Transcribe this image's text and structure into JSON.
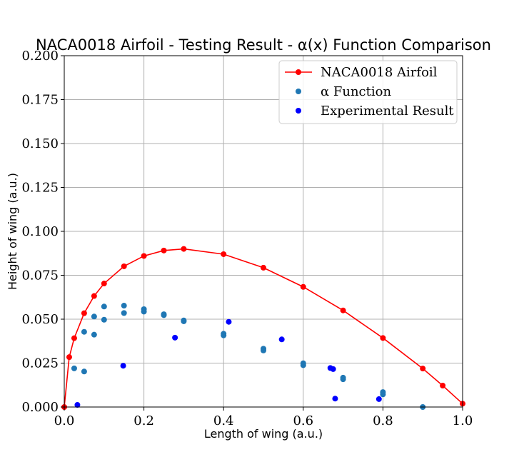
{
  "chart_data": {
    "type": "scatter",
    "title": "NACA0018 Airfoil - Testing Result - α(x) Function Comparison",
    "xlabel": "Length of wing (a.u.)",
    "ylabel": "Height of wing (a.u.)",
    "xlim": [
      0.0,
      1.0
    ],
    "ylim": [
      0.0,
      0.2
    ],
    "grid": true,
    "legend_position": "top-right",
    "x_ticks": [
      "0.0",
      "0.2",
      "0.4",
      "0.6",
      "0.8",
      "1.0"
    ],
    "x_tick_values": [
      0.0,
      0.2,
      0.4,
      0.6,
      0.8,
      1.0
    ],
    "y_ticks": [
      "0.000",
      "0.025",
      "0.050",
      "0.075",
      "0.100",
      "0.125",
      "0.150",
      "0.175",
      "0.200"
    ],
    "y_tick_values": [
      0.0,
      0.025,
      0.05,
      0.075,
      0.1,
      0.125,
      0.15,
      0.175,
      0.2
    ],
    "series": [
      {
        "name": "NACA0018 Airfoil",
        "kind": "line-marker",
        "color": "#ff0000",
        "points": [
          [
            0.0,
            0.0
          ],
          [
            0.0125,
            0.0284
          ],
          [
            0.025,
            0.0392
          ],
          [
            0.05,
            0.0534
          ],
          [
            0.075,
            0.0632
          ],
          [
            0.1,
            0.0703
          ],
          [
            0.15,
            0.0801
          ],
          [
            0.2,
            0.086
          ],
          [
            0.25,
            0.0891
          ],
          [
            0.3,
            0.09
          ],
          [
            0.4,
            0.087
          ],
          [
            0.5,
            0.0793
          ],
          [
            0.6,
            0.0684
          ],
          [
            0.7,
            0.055
          ],
          [
            0.8,
            0.0393
          ],
          [
            0.9,
            0.0219
          ],
          [
            0.95,
            0.0122
          ],
          [
            1.0,
            0.0019
          ]
        ]
      },
      {
        "name": "α Function",
        "kind": "scatter",
        "color": "#1f77b4",
        "points": [
          [
            0.025,
            0.022
          ],
          [
            0.05,
            0.0202
          ],
          [
            0.05,
            0.0428
          ],
          [
            0.075,
            0.0412
          ],
          [
            0.075,
            0.0515
          ],
          [
            0.1,
            0.0497
          ],
          [
            0.1,
            0.0572
          ],
          [
            0.15,
            0.0535
          ],
          [
            0.15,
            0.0577
          ],
          [
            0.2,
            0.0543
          ],
          [
            0.2,
            0.0557
          ],
          [
            0.25,
            0.0523
          ],
          [
            0.25,
            0.0528
          ],
          [
            0.3,
            0.0488
          ],
          [
            0.3,
            0.0493
          ],
          [
            0.4,
            0.0408
          ],
          [
            0.4,
            0.0417
          ],
          [
            0.5,
            0.0322
          ],
          [
            0.5,
            0.0332
          ],
          [
            0.6,
            0.0238
          ],
          [
            0.6,
            0.0249
          ],
          [
            0.7,
            0.0158
          ],
          [
            0.7,
            0.0167
          ],
          [
            0.8,
            0.0072
          ],
          [
            0.8,
            0.0085
          ],
          [
            0.9,
            0.0
          ]
        ]
      },
      {
        "name": "Experimental Result",
        "kind": "scatter",
        "color": "#0000ff",
        "points": [
          [
            0.033,
            0.0012
          ],
          [
            0.148,
            0.0235
          ],
          [
            0.278,
            0.0395
          ],
          [
            0.413,
            0.0485
          ],
          [
            0.546,
            0.0385
          ],
          [
            0.668,
            0.0222
          ],
          [
            0.675,
            0.0216
          ],
          [
            0.68,
            0.0048
          ],
          [
            0.79,
            0.0045
          ]
        ]
      }
    ]
  }
}
